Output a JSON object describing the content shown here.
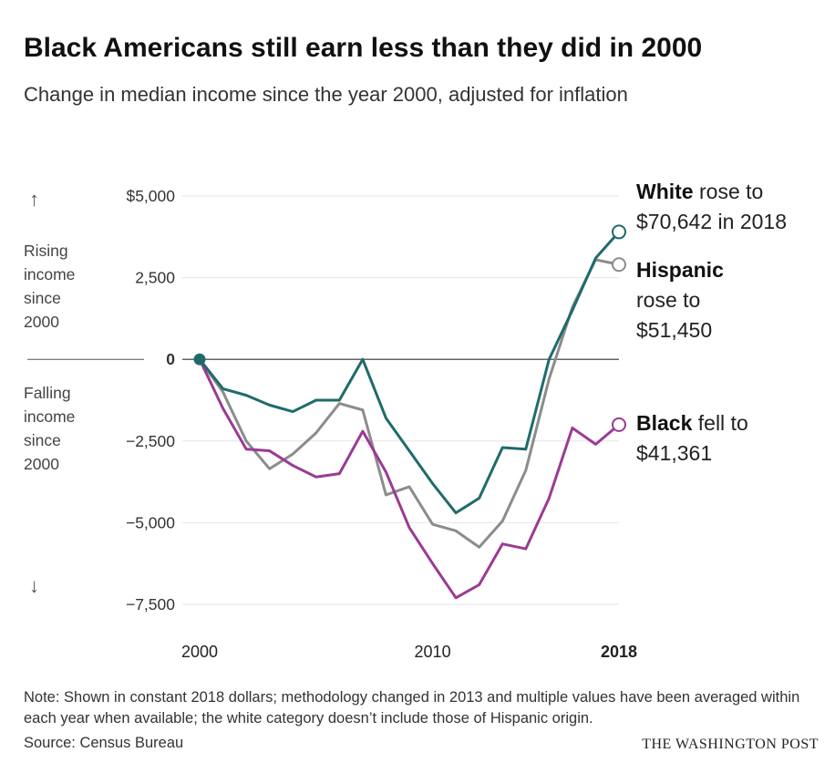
{
  "header": {
    "title": "Black Americans still earn less than they did in 2000",
    "subtitle": "Change in median income since the year 2000, adjusted for inflation"
  },
  "side_labels": {
    "up_arrow": "↑",
    "rising": [
      "Rising",
      "income",
      "since",
      "2000"
    ],
    "falling": [
      "Falling",
      "income",
      "since",
      "2000"
    ],
    "down_arrow": "↓"
  },
  "labels": {
    "white": {
      "name": "White",
      "rest_1": "rose to",
      "rest_2": "$70,642 in 2018"
    },
    "hispanic": {
      "name": "Hispanic",
      "rest_1": "rose to",
      "rest_2": "$51,450"
    },
    "black": {
      "name": "Black",
      "rest_1": "fell to",
      "rest_2": "$41,361"
    }
  },
  "footer": {
    "note": "Note: Shown in constant 2018 dollars; methodology changed in 2013 and multiple values have been averaged within each year when available; the white category doesn’t include those of Hispanic origin.",
    "source": "Source: Census Bureau",
    "brand": "THE WASHINGTON POST"
  },
  "chart_data": {
    "type": "line",
    "title": "Black Americans still earn less than they did in 2000",
    "subtitle": "Change in median income since the year 2000, adjusted for inflation",
    "xlim": [
      2000,
      2018
    ],
    "ylim": [
      -7500,
      5000
    ],
    "x_ticks": [
      {
        "value": 2000,
        "label": "2000",
        "bold": false
      },
      {
        "value": 2010,
        "label": "2010",
        "bold": false
      },
      {
        "value": 2018,
        "label": "2018",
        "bold": true
      }
    ],
    "y_ticks": [
      {
        "value": 5000,
        "label": "$5,000"
      },
      {
        "value": 2500,
        "label": "2,500"
      },
      {
        "value": 0,
        "label": "0"
      },
      {
        "value": -2500,
        "label": "−2,500"
      },
      {
        "value": -5000,
        "label": "−5,000"
      },
      {
        "value": -7500,
        "label": "−7,500"
      }
    ],
    "grid": true,
    "colors": {
      "white": "#1f6b6b",
      "hispanic": "#8c8c8c",
      "black": "#9b3a93",
      "grid": "#e6e6e6",
      "zero": "#333333"
    },
    "x": [
      2000,
      2001,
      2002,
      2003,
      2004,
      2005,
      2006,
      2007,
      2008,
      2009,
      2010,
      2011,
      2012,
      2013,
      2014,
      2015,
      2016,
      2017,
      2018
    ],
    "series": [
      {
        "name": "White",
        "key": "white",
        "values": [
          0,
          -900,
          -1100,
          -1400,
          -1600,
          -1250,
          -1250,
          0,
          -1800,
          -2800,
          -3800,
          -4700,
          -4250,
          -2700,
          -2750,
          0,
          1500,
          3100,
          3900
        ]
      },
      {
        "name": "Hispanic",
        "key": "hispanic",
        "values": [
          0,
          -1000,
          -2500,
          -3350,
          -2900,
          -2250,
          -1350,
          -1550,
          -4150,
          -3900,
          -5050,
          -5250,
          -5750,
          -4950,
          -3400,
          -600,
          1600,
          3050,
          2900
        ]
      },
      {
        "name": "Black",
        "key": "black",
        "values": [
          0,
          -1500,
          -2750,
          -2800,
          -3250,
          -3600,
          -3500,
          -2200,
          -3450,
          -5150,
          -6250,
          -7300,
          -6900,
          -5650,
          -5800,
          -4250,
          -2100,
          -2600,
          -2000
        ]
      }
    ]
  }
}
